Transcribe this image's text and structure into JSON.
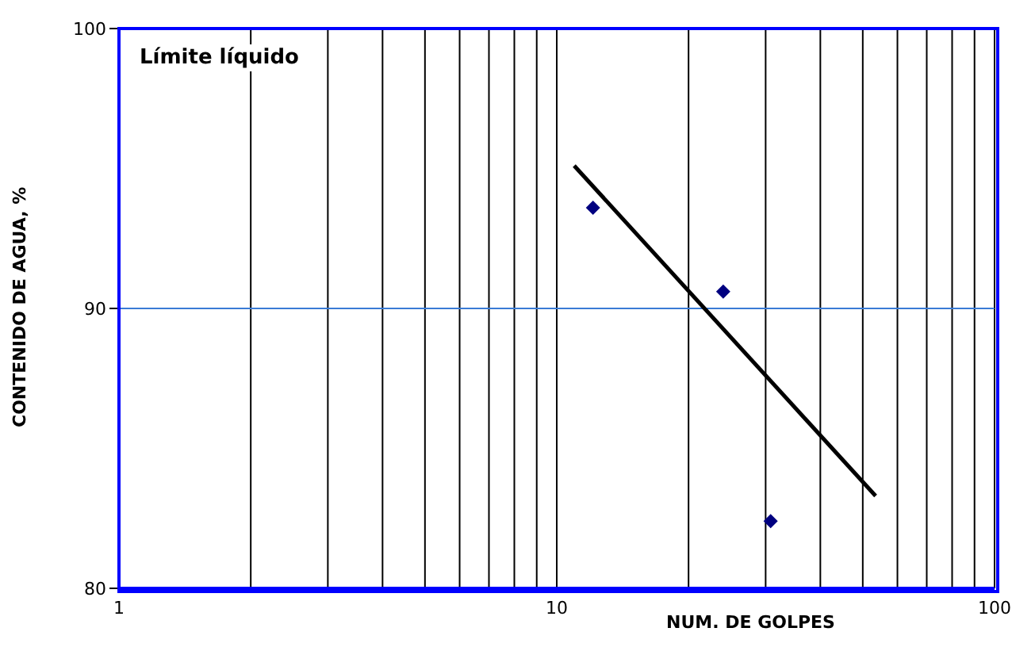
{
  "chart_data": {
    "type": "scatter",
    "xlabel": "NUM. DE GOLPES",
    "ylabel": "CONTENIDO DE AGUA, %",
    "annotations": [
      "Límite líquido"
    ],
    "log": "x",
    "xlim": [
      1,
      100
    ],
    "ylim": [
      80,
      100
    ],
    "xticks": [
      1,
      {
        "value": 2,
        "label": null
      },
      {
        "value": 3,
        "label": null
      },
      {
        "value": 4,
        "label": null
      },
      {
        "value": 5,
        "label": null
      },
      {
        "value": 6,
        "label": null
      },
      {
        "value": 7,
        "label": null
      },
      {
        "value": 8,
        "label": null
      },
      {
        "value": 9,
        "label": null
      },
      10,
      {
        "value": 20,
        "label": null
      },
      {
        "value": 30,
        "label": null
      },
      {
        "value": 40,
        "label": null
      },
      {
        "value": 50,
        "label": null
      },
      {
        "value": 60,
        "label": null
      },
      {
        "value": 70,
        "label": null
      },
      {
        "value": 80,
        "label": null
      },
      {
        "value": 90,
        "label": null
      },
      100
    ],
    "yticks": [
      80,
      90,
      100
    ],
    "grid": "x",
    "legend": false,
    "ref_lines": [
      {
        "axis": "y",
        "value": 90,
        "label": null,
        "color": "#3a7bd5"
      }
    ],
    "series": [
      {
        "x": [
          12.1,
          24.0,
          30.8
        ],
        "values": [
          93.6,
          90.6,
          82.4
        ],
        "color": "#000080",
        "marker": "diamond"
      },
      {
        "type": "line",
        "x": [
          10.96,
          53.5
        ],
        "values": [
          95.1,
          83.3
        ],
        "color": "#000000",
        "marker": "none",
        "line_style": "solid"
      }
    ]
  }
}
